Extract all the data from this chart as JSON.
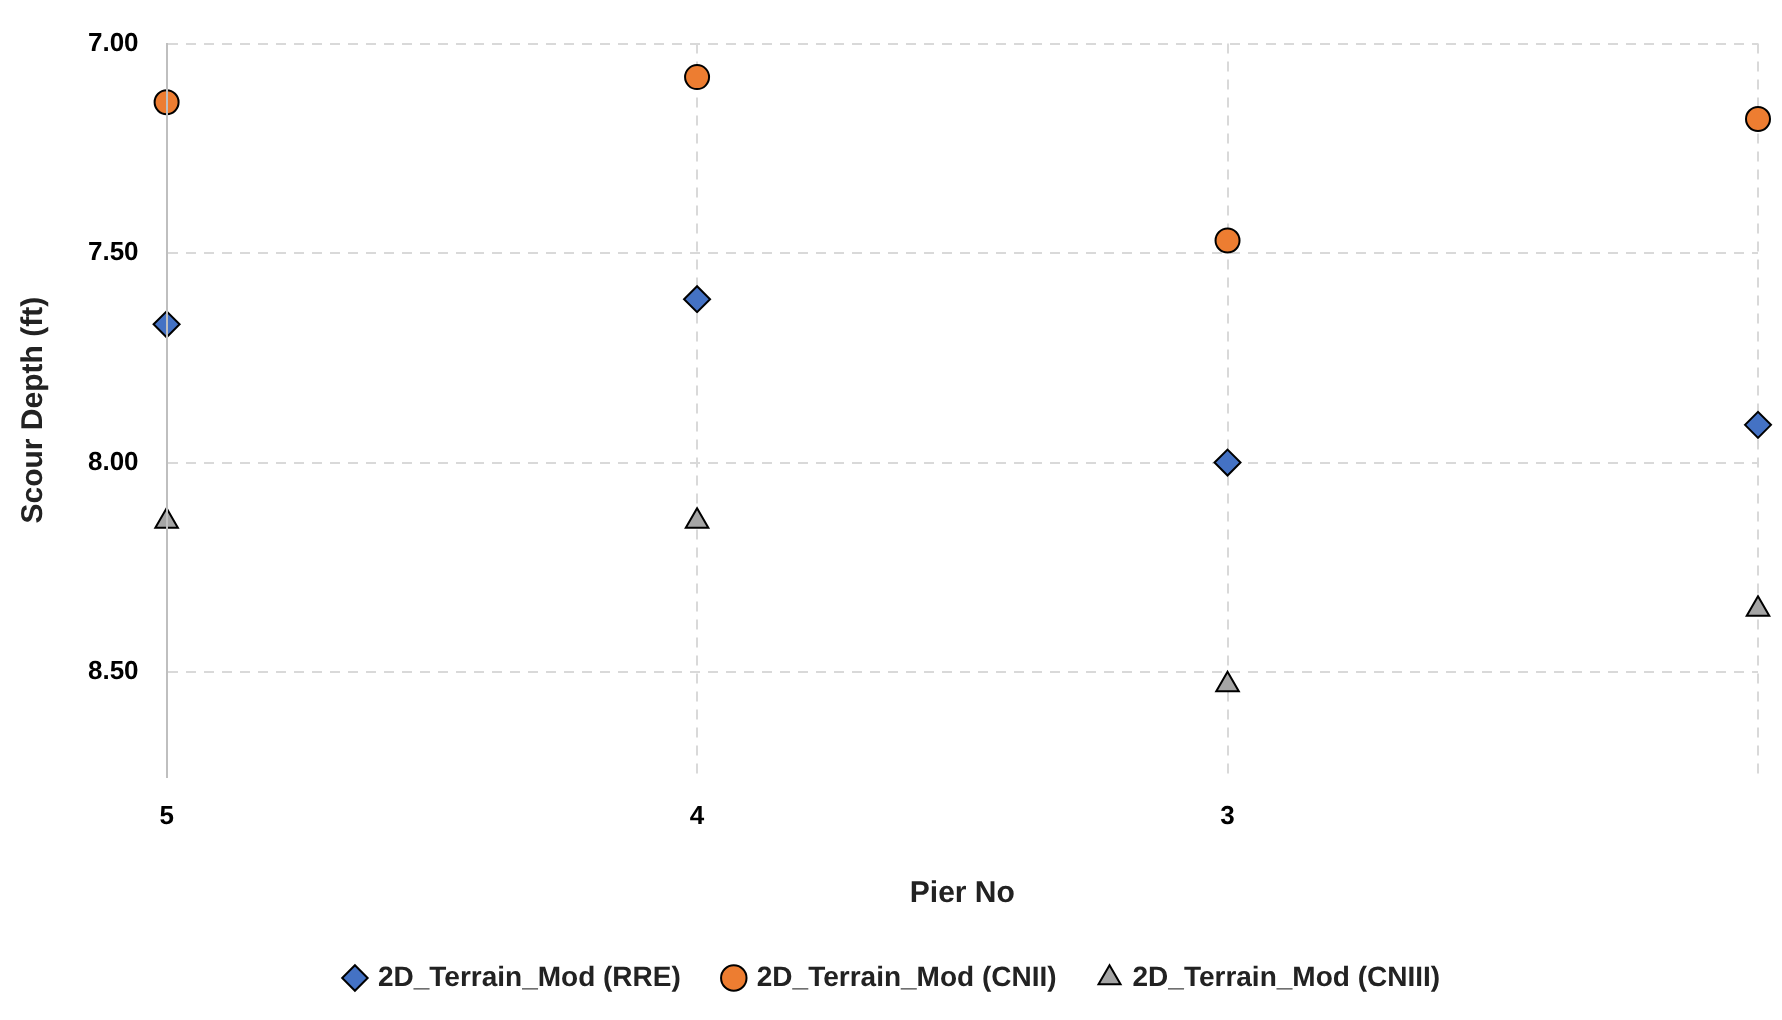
{
  "chart_data": {
    "type": "scatter",
    "xlabel": "Pier No",
    "ylabel": "Scour Depth (ft)",
    "categories": [
      "5",
      "4",
      "3",
      null
    ],
    "series": [
      {
        "name": "2D_Terrain_Mod (RRE)",
        "color": "#4472c4",
        "marker": "diamond",
        "values": [
          7.67,
          7.61,
          8.0,
          7.91
        ]
      },
      {
        "name": "2D_Terrain_Mod (CNII)",
        "color": "#ed7d31",
        "marker": "circle",
        "values": [
          7.14,
          7.08,
          7.47,
          7.18
        ]
      },
      {
        "name": "2D_Terrain_Mod (CNIII)",
        "color": "#a5a5a5",
        "marker": "triangle",
        "values": [
          8.14,
          8.14,
          8.53,
          8.35
        ]
      }
    ],
    "ylim": [
      8.75,
      7.0
    ],
    "yticks": [
      {
        "value": 7.0,
        "label": "7.00"
      },
      {
        "value": 7.5,
        "label": "7.50"
      },
      {
        "value": 8.0,
        "label": "8.00"
      },
      {
        "value": 8.5,
        "label": "8.50"
      }
    ],
    "grid": true,
    "legend": "bottom"
  }
}
